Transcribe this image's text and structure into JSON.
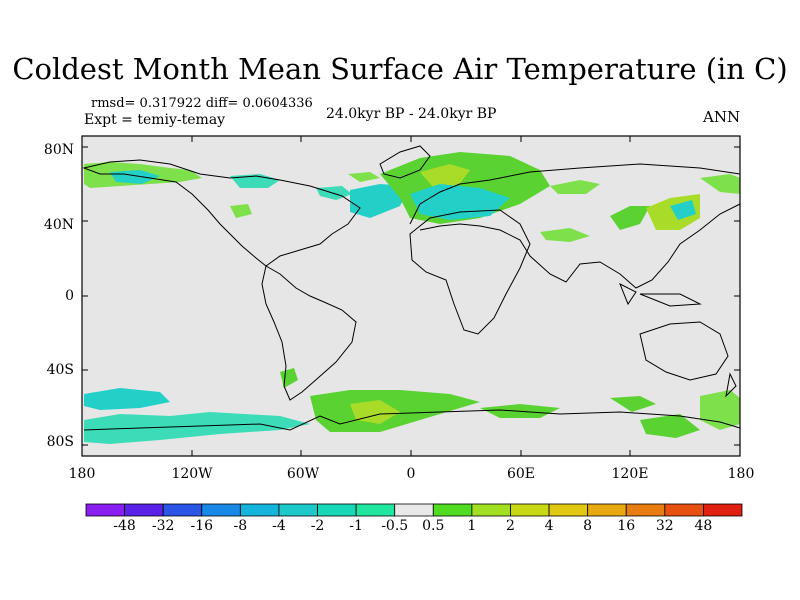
{
  "title": "Coldest Month Mean Surface Air Temperature (in C)",
  "stats_line": "rmsd= 0.317922 diff= 0.0604336",
  "experiment_line": "Expt = temiy-temay",
  "subtitle": "24.0kyr BP - 24.0kyr BP",
  "season": "ANN",
  "map": {
    "background_color": "#e6e6e6",
    "coastline_color": "#000000",
    "lon_range": [
      -180,
      180
    ],
    "lat_range": [
      -90,
      90
    ],
    "lat_tick_labels": [
      "80N",
      "40N",
      "0",
      "40S",
      "80S"
    ],
    "lon_tick_labels": [
      "180",
      "120W",
      "60W",
      "0",
      "60E",
      "120E",
      "180"
    ]
  },
  "colorbar": {
    "colors": [
      "#8a1ef0",
      "#5a22e6",
      "#2a55e6",
      "#1a88e6",
      "#14b4dc",
      "#1cc8c8",
      "#18d8b8",
      "#20e6a0",
      "#e8e8e8",
      "#50dc20",
      "#a0e020",
      "#c8d814",
      "#e0c810",
      "#e8a810",
      "#e87c10",
      "#e85010",
      "#e02010"
    ],
    "labels": [
      "-48",
      "-32",
      "-16",
      "-8",
      "-4",
      "-2",
      "-1",
      "-0.5",
      "0.5",
      "1",
      "2",
      "4",
      "8",
      "16",
      "32",
      "48"
    ]
  },
  "legend_colors": {
    "green_light": "#7ee04a",
    "green_mid": "#5ad232",
    "yellow_green": "#a8dc28",
    "cyan": "#22d0c8",
    "cyan_light": "#3cdcb8",
    "orange": "#e0b41c"
  }
}
